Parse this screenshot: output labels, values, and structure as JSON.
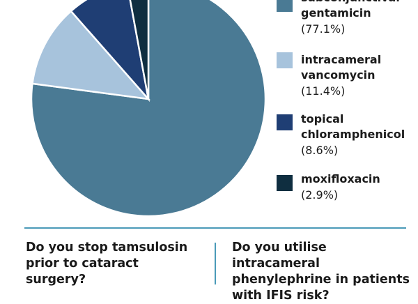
{
  "chart_data": {
    "type": "pie",
    "start": "top",
    "direction": "clockwise",
    "slices": [
      {
        "label": "subconjunctival gentamicin",
        "pct": "(77.1%)",
        "value": 77.1,
        "color": "#4a7a94"
      },
      {
        "label": "intracameral vancomycin",
        "pct": "(11.4%)",
        "value": 11.4,
        "color": "#a7c3dc"
      },
      {
        "label": "topical chloramphenicol",
        "pct": "(8.6%)",
        "value": 8.6,
        "color": "#1f3e74"
      },
      {
        "label": "moxifloxacin",
        "pct": "(2.9%)",
        "value": 2.9,
        "color": "#0f2e40"
      }
    ],
    "legend": "right"
  },
  "legend_lines": [
    [
      "subconjunctival",
      "gentamicin"
    ],
    [
      "intracameral",
      "vancomycin"
    ],
    [
      "topical",
      "chloramphenicol"
    ],
    [
      "moxifloxacin"
    ]
  ],
  "questions": [
    {
      "lines": [
        "Do you stop tamsulosin",
        "prior to cataract",
        "surgery?"
      ]
    },
    {
      "lines": [
        "Do you utilise intracameral",
        "phenylephrine in patients",
        "with IFIS risk?"
      ]
    }
  ]
}
